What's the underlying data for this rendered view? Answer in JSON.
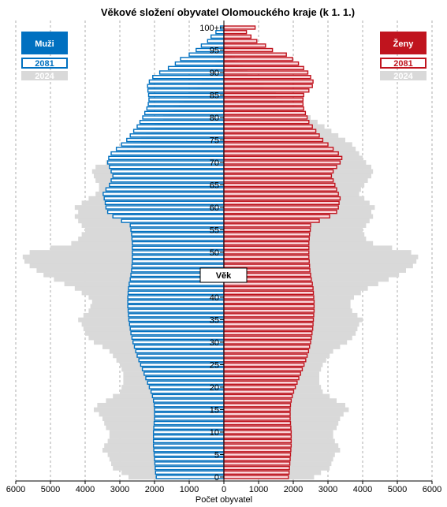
{
  "chart_data": {
    "type": "bar",
    "orientation": "horizontal-pyramid",
    "title": "Věkové složení obyvatel Olomouckého kraje (k 1. 1.)",
    "xlabel": "Počet obyvatel",
    "center_label": "Věk",
    "xlim": [
      -6000,
      6000
    ],
    "x_ticks": [
      6000,
      5000,
      4000,
      3000,
      2000,
      1000,
      0,
      1000,
      2000,
      3000,
      4000,
      5000,
      6000
    ],
    "age_ticks": [
      "0",
      "5",
      "10",
      "15",
      "20",
      "25",
      "30",
      "35",
      "40",
      "45",
      "50",
      "55",
      "60",
      "65",
      "70",
      "75",
      "80",
      "85",
      "90",
      "95",
      "100+"
    ],
    "age_tick_values": [
      0,
      5,
      10,
      15,
      20,
      25,
      30,
      35,
      40,
      45,
      50,
      55,
      60,
      65,
      70,
      75,
      80,
      85,
      90,
      95,
      100
    ],
    "grid": true,
    "legend": {
      "left_header": "Muži",
      "right_header": "Ženy",
      "series_projection": "2081",
      "series_current": "2024"
    },
    "colors": {
      "male": "#0070c0",
      "male_fill": "#ffffff",
      "female": "#c0141e",
      "female_fill": "#f9d6da",
      "current": "#d9d9d9"
    },
    "ages": [
      0,
      1,
      2,
      3,
      4,
      5,
      6,
      7,
      8,
      9,
      10,
      11,
      12,
      13,
      14,
      15,
      16,
      17,
      18,
      19,
      20,
      21,
      22,
      23,
      24,
      25,
      26,
      27,
      28,
      29,
      30,
      31,
      32,
      33,
      34,
      35,
      36,
      37,
      38,
      39,
      40,
      41,
      42,
      43,
      44,
      45,
      46,
      47,
      48,
      49,
      50,
      51,
      52,
      53,
      54,
      55,
      56,
      57,
      58,
      59,
      60,
      61,
      62,
      63,
      64,
      65,
      66,
      67,
      68,
      69,
      70,
      71,
      72,
      73,
      74,
      75,
      76,
      77,
      78,
      79,
      80,
      81,
      82,
      83,
      84,
      85,
      86,
      87,
      88,
      89,
      90,
      91,
      92,
      93,
      94,
      95,
      96,
      97,
      98,
      99,
      100
    ],
    "series": [
      {
        "name": "2024",
        "sex": "male",
        "values": [
          2750,
          2950,
          3200,
          3250,
          3300,
          3350,
          3500,
          3450,
          3350,
          3300,
          3300,
          3400,
          3450,
          3500,
          3600,
          3750,
          3650,
          3400,
          3200,
          3000,
          2950,
          2900,
          2900,
          2900,
          2950,
          3000,
          3100,
          3200,
          3300,
          3500,
          3750,
          3900,
          4000,
          4050,
          4100,
          4200,
          4050,
          3900,
          3850,
          3800,
          3900,
          4100,
          4300,
          4600,
          4900,
          5200,
          5400,
          5600,
          5750,
          5800,
          5600,
          5000,
          4400,
          4200,
          4100,
          4000,
          4100,
          4200,
          4300,
          4200,
          4300,
          4100,
          3900,
          3700,
          3600,
          3600,
          3700,
          3750,
          3800,
          3700,
          3400,
          3200,
          3000,
          2800,
          2600,
          2400,
          2250,
          2100,
          2000,
          1900,
          1750,
          1600,
          1450,
          1300,
          1150,
          1000,
          880,
          760,
          640,
          520,
          420,
          330,
          250,
          190,
          130,
          90,
          60,
          40,
          25,
          15,
          10
        ]
      },
      {
        "name": "2024",
        "sex": "female",
        "values": [
          2600,
          2800,
          3050,
          3100,
          3150,
          3200,
          3350,
          3300,
          3200,
          3150,
          3150,
          3250,
          3300,
          3350,
          3450,
          3600,
          3500,
          3250,
          3050,
          2850,
          2800,
          2750,
          2750,
          2750,
          2800,
          2850,
          2950,
          3050,
          3150,
          3350,
          3550,
          3700,
          3800,
          3850,
          3900,
          4000,
          3850,
          3700,
          3650,
          3650,
          3750,
          3950,
          4150,
          4450,
          4750,
          5050,
          5250,
          5450,
          5550,
          5600,
          5400,
          4850,
          4300,
          4100,
          4050,
          4000,
          4100,
          4200,
          4300,
          4250,
          4350,
          4200,
          4050,
          3900,
          3950,
          4050,
          4150,
          4250,
          4300,
          4250,
          4100,
          4000,
          3900,
          3800,
          3700,
          3500,
          3300,
          3100,
          2900,
          2700,
          2500,
          2300,
          2100,
          1900,
          1700,
          1500,
          1320,
          1150,
          990,
          830,
          680,
          540,
          420,
          320,
          230,
          160,
          110,
          70,
          45,
          28,
          40
        ]
      },
      {
        "name": "2081",
        "sex": "male",
        "values": [
          1950,
          1970,
          1980,
          1990,
          2000,
          2010,
          2020,
          2030,
          2030,
          2030,
          2030,
          2020,
          2010,
          2000,
          2000,
          2000,
          2010,
          2030,
          2060,
          2100,
          2150,
          2200,
          2250,
          2300,
          2350,
          2400,
          2450,
          2500,
          2540,
          2580,
          2620,
          2650,
          2680,
          2700,
          2720,
          2740,
          2750,
          2760,
          2770,
          2770,
          2770,
          2760,
          2750,
          2730,
          2700,
          2680,
          2660,
          2650,
          2640,
          2640,
          2640,
          2640,
          2640,
          2650,
          2660,
          2680,
          2700,
          2950,
          3200,
          3350,
          3400,
          3420,
          3450,
          3480,
          3400,
          3300,
          3250,
          3200,
          3250,
          3300,
          3350,
          3320,
          3250,
          3100,
          2950,
          2800,
          2700,
          2600,
          2500,
          2420,
          2340,
          2280,
          2220,
          2180,
          2160,
          2170,
          2190,
          2200,
          2150,
          2050,
          1850,
          1600,
          1400,
          1250,
          1000,
          800,
          650,
          470,
          370,
          230,
          100
        ]
      },
      {
        "name": "2081",
        "sex": "female",
        "values": [
          1860,
          1880,
          1890,
          1900,
          1910,
          1920,
          1930,
          1940,
          1940,
          1940,
          1940,
          1930,
          1920,
          1910,
          1910,
          1910,
          1920,
          1940,
          1970,
          2010,
          2060,
          2110,
          2160,
          2210,
          2260,
          2310,
          2360,
          2400,
          2440,
          2470,
          2500,
          2520,
          2540,
          2560,
          2570,
          2580,
          2590,
          2600,
          2600,
          2600,
          2590,
          2580,
          2570,
          2550,
          2520,
          2500,
          2480,
          2470,
          2460,
          2450,
          2450,
          2450,
          2450,
          2460,
          2470,
          2490,
          2500,
          2750,
          3050,
          3250,
          3300,
          3320,
          3350,
          3300,
          3250,
          3200,
          3150,
          3100,
          3150,
          3250,
          3350,
          3400,
          3300,
          3150,
          3000,
          2850,
          2750,
          2650,
          2550,
          2450,
          2400,
          2350,
          2300,
          2280,
          2280,
          2300,
          2450,
          2550,
          2570,
          2500,
          2420,
          2300,
          2150,
          1980,
          1800,
          1400,
          1200,
          950,
          780,
          650,
          900
        ]
      }
    ]
  }
}
